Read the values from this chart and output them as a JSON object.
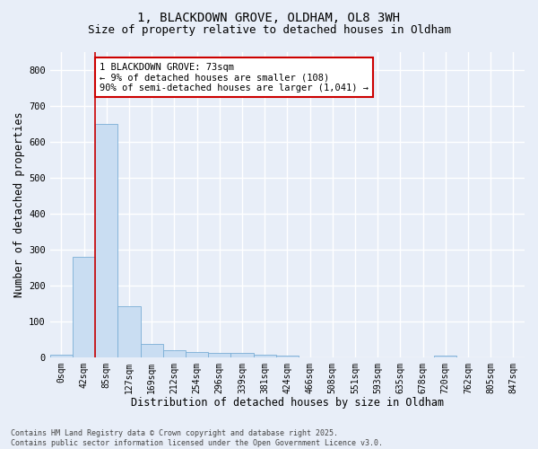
{
  "title_line1": "1, BLACKDOWN GROVE, OLDHAM, OL8 3WH",
  "title_line2": "Size of property relative to detached houses in Oldham",
  "xlabel": "Distribution of detached houses by size in Oldham",
  "ylabel": "Number of detached properties",
  "bin_labels": [
    "0sqm",
    "42sqm",
    "85sqm",
    "127sqm",
    "169sqm",
    "212sqm",
    "254sqm",
    "296sqm",
    "339sqm",
    "381sqm",
    "424sqm",
    "466sqm",
    "508sqm",
    "551sqm",
    "593sqm",
    "635sqm",
    "678sqm",
    "720sqm",
    "762sqm",
    "805sqm",
    "847sqm"
  ],
  "bar_values": [
    8,
    278,
    648,
    142,
    38,
    20,
    14,
    13,
    12,
    7,
    4,
    0,
    0,
    0,
    0,
    0,
    0,
    5,
    0,
    0,
    0
  ],
  "bar_color": "#c9ddf2",
  "bar_edge_color": "#7aaed6",
  "vline_x": 1.5,
  "vline_color": "#cc0000",
  "annotation_text": "1 BLACKDOWN GROVE: 73sqm\n← 9% of detached houses are smaller (108)\n90% of semi-detached houses are larger (1,041) →",
  "annotation_box_color": "#ffffff",
  "annotation_box_edge": "#cc0000",
  "ylim": [
    0,
    850
  ],
  "yticks": [
    0,
    100,
    200,
    300,
    400,
    500,
    600,
    700,
    800
  ],
  "footer_text": "Contains HM Land Registry data © Crown copyright and database right 2025.\nContains public sector information licensed under the Open Government Licence v3.0.",
  "background_color": "#e8eef8",
  "grid_color": "#ffffff",
  "title_fontsize": 10,
  "subtitle_fontsize": 9,
  "axis_fontsize": 8.5,
  "tick_fontsize": 7,
  "footer_fontsize": 6,
  "annot_fontsize": 7.5
}
